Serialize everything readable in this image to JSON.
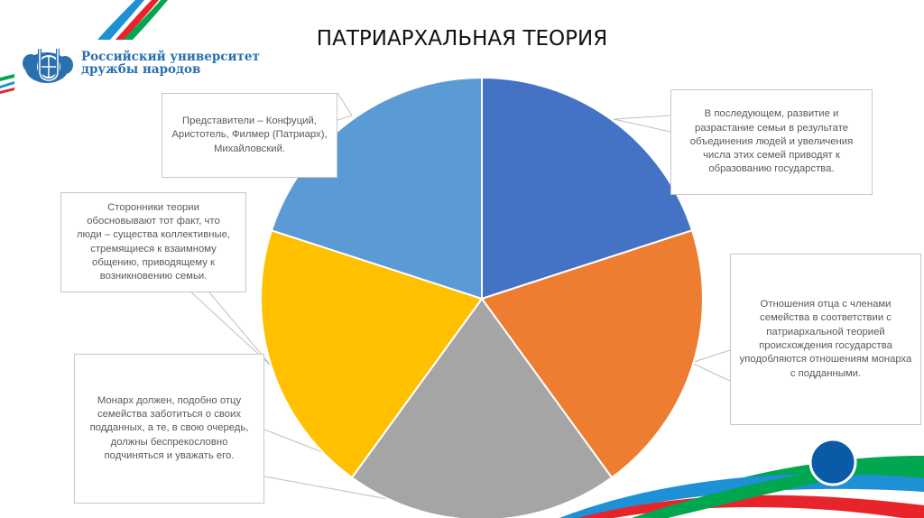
{
  "header": {
    "title": "ПАТРИАРХАЛЬНАЯ ТЕОРИЯ",
    "logo_line1": "Российский университет",
    "logo_line2": "дружбы народов"
  },
  "colors": {
    "slice_blue": "#4472c4",
    "slice_orange": "#ed7d31",
    "slice_gray": "#a5a5a5",
    "slice_yellow": "#ffc000",
    "slice_lightblue": "#5b9bd5",
    "accent_red": "#e8232a",
    "accent_green": "#00a650",
    "accent_blue": "#1e90d6",
    "brand_blue": "#0b5aa8"
  },
  "callouts": [
    {
      "id": "top-right",
      "text": "В последующем, развитие и\nразрастание семьи в результате\nобъединения людей и увеличения\nчисла этих семей приводят к\nобразованию государства."
    },
    {
      "id": "right",
      "text": "Отношения отца с членами\nсемейства в соответствии с\nпатриархальной теорией\nпроисхождения государства\nуподобляются отношениям монарха\nс подданными."
    },
    {
      "id": "bottom-left",
      "text": "Монарх должен, подобно отцу\nсемейства заботиться о своих\nподданных, а те, в свою очередь,\nдолжны беспрекословно\nподчиняться и уважать его."
    },
    {
      "id": "left",
      "text": "Сторонники теории\nобосновывают тот факт, что\nлюди – существа коллективные,\nстремящиеся к взаимному\nобщению, приводящему к\nвозникновению семьи."
    },
    {
      "id": "top-left",
      "text": "Представители – Конфуций,\nАристотель, Филмер (Патриарх),\nМихайловский."
    }
  ],
  "chart_data": {
    "type": "pie",
    "title": "ПАТРИАРХАЛЬНАЯ ТЕОРИЯ",
    "categories": [
      "В последующем, развитие и разрастание семьи в результате объединения людей и увеличения числа этих семей приводят к образованию государства.",
      "Отношения отца с членами семейства в соответствии с патриархальной теорией происхождения государства уподобляются отношениям монарха с подданными.",
      "Монарх должен, подобно отцу семейства заботиться о своих подданных, а те, в свою очередь, должны беспрекословно подчиняться и уважать его.",
      "Сторонники теории обосновывают тот факт, что люди – существа коллективные, стремящиеся к взаимному общению, приводящему к возникновению семьи.",
      "Представители – Конфуций, Аристотель, Филмер (Патриарх), Михайловский."
    ],
    "values": [
      20,
      20,
      20,
      20,
      20
    ],
    "colors": [
      "#4472c4",
      "#ed7d31",
      "#a5a5a5",
      "#ffc000",
      "#5b9bd5"
    ],
    "start_angle_deg": 0,
    "direction": "clockwise",
    "legend": "none (data callouts)",
    "labels_style": "callout boxes with leader lines"
  }
}
